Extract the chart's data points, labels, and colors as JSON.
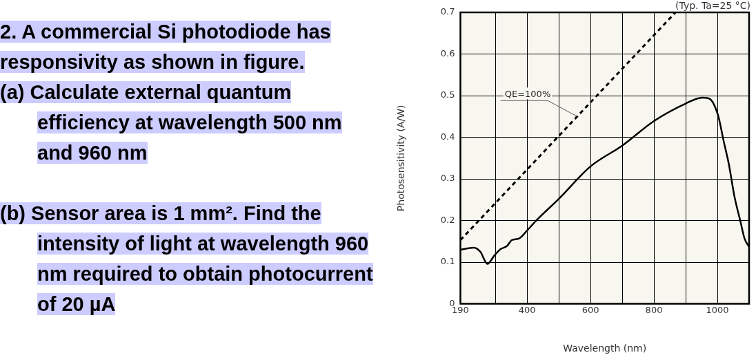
{
  "chart_data": {
    "type": "line",
    "title": "2. A commercial Si photodiode has responsivity as shown in figure.",
    "subtitle": "(Typ. Ta=25 °C)",
    "annotations": [
      "(a) Calculate external quantum efficiency at wavelength 500 nm and 960 nm",
      "(b) Sensor area is 1 mm². Find the intensity of light at wavelength 960 nm required to obtain photocurrent of 20 µA",
      {
        "text": "QE=100%",
        "x": 558,
        "y": 0.45
      }
    ],
    "xlabel": "Wavelength (nm)",
    "ylabel": "Photosensitivity (A/W)",
    "series": [
      {
        "color": "#000000",
        "line_style": "solid",
        "x": [
          190,
          232,
          253,
          275,
          298,
          316,
          337,
          352,
          375,
          400,
          429,
          500,
          600,
          700,
          800,
          900,
          952,
          974,
          1002,
          1020,
          1036,
          1054,
          1072,
          1086,
          1100
        ],
        "values": [
          0.13,
          0.135,
          0.125,
          0.096,
          0.117,
          0.131,
          0.139,
          0.153,
          0.157,
          0.176,
          0.2,
          0.252,
          0.33,
          0.38,
          0.439,
          0.481,
          0.495,
          0.493,
          0.453,
          0.39,
          0.336,
          0.257,
          0.2,
          0.156,
          0.137
        ]
      },
      {
        "color": "#000000",
        "line_style": "dashed",
        "x": [
          190,
          868
        ],
        "values": [
          0.153,
          0.7
        ]
      }
    ],
    "xlim": [
      190,
      1100
    ],
    "xticks": [
      190,
      {
        "value": 300,
        "label": null
      },
      400,
      {
        "value": 500,
        "label": null
      },
      600,
      {
        "value": 700,
        "label": null
      },
      800,
      {
        "value": 900,
        "label": null
      },
      1000
    ],
    "ylim": [
      0,
      0.7
    ],
    "yticks": [
      0,
      0.1,
      0.2,
      0.3,
      0.4,
      0.5,
      0.6,
      0.7
    ],
    "grid": true,
    "legend": false,
    "marker": "none"
  }
}
